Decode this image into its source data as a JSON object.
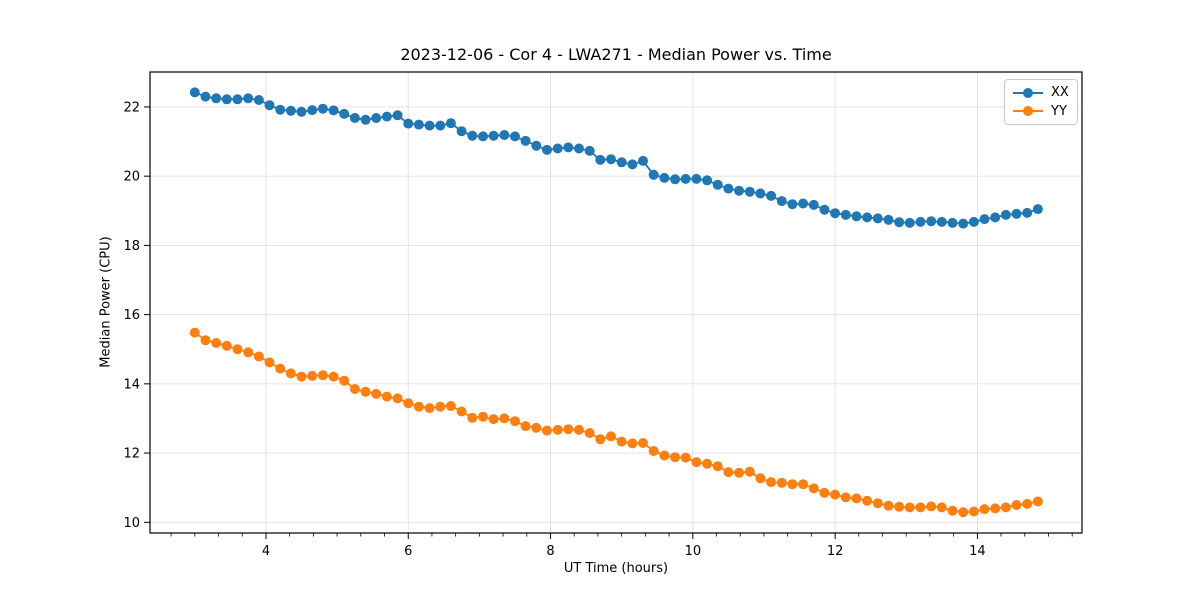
{
  "figure": {
    "background": "#ffffff"
  },
  "chart_data": {
    "type": "line",
    "title": "2023-12-06 - Cor 4 - LWA271 - Median Power vs. Time",
    "xlabel": "UT Time (hours)",
    "ylabel": "Median Power (CPU)",
    "xlim": [
      2.37,
      15.47
    ],
    "ylim": [
      9.69,
      23.01
    ],
    "x_major_ticks": [
      4,
      6,
      8,
      10,
      12,
      14
    ],
    "x_tick_labels": [
      "4",
      "6",
      "8",
      "10",
      "12",
      "14"
    ],
    "x_minor_tick_step": 0.3333,
    "y_major_ticks": [
      10,
      12,
      14,
      16,
      18,
      20,
      22
    ],
    "y_tick_labels": [
      "10",
      "12",
      "14",
      "16",
      "18",
      "20",
      "22"
    ],
    "grid": true,
    "grid_color": "#e0e0e0",
    "legend_position": "upper right",
    "marker": "circle",
    "x": [
      3.0,
      3.15,
      3.3,
      3.45,
      3.6,
      3.75,
      3.9,
      4.05,
      4.2,
      4.35,
      4.5,
      4.65,
      4.8,
      4.95,
      5.1,
      5.25,
      5.4,
      5.55,
      5.7,
      5.85,
      6.0,
      6.15,
      6.3,
      6.45,
      6.6,
      6.75,
      6.9,
      7.05,
      7.2,
      7.35,
      7.5,
      7.65,
      7.8,
      7.95,
      8.1,
      8.25,
      8.4,
      8.55,
      8.7,
      8.85,
      9.0,
      9.15,
      9.3,
      9.45,
      9.6,
      9.75,
      9.9,
      10.05,
      10.2,
      10.35,
      10.5,
      10.65,
      10.8,
      10.95,
      11.1,
      11.25,
      11.4,
      11.55,
      11.7,
      11.85,
      12.0,
      12.15,
      12.3,
      12.45,
      12.6,
      12.75,
      12.9,
      13.05,
      13.2,
      13.35,
      13.5,
      13.65,
      13.8,
      13.95,
      14.1,
      14.25,
      14.4,
      14.55,
      14.7,
      14.85
    ],
    "series": [
      {
        "name": "XX",
        "color": "#1f77b4",
        "values": [
          22.42,
          22.3,
          22.25,
          22.22,
          22.22,
          22.25,
          22.2,
          22.05,
          21.92,
          21.89,
          21.86,
          21.91,
          21.95,
          21.9,
          21.8,
          21.68,
          21.63,
          21.68,
          21.72,
          21.76,
          21.52,
          21.49,
          21.46,
          21.46,
          21.53,
          21.3,
          21.17,
          21.15,
          21.17,
          21.19,
          21.15,
          21.02,
          20.88,
          20.76,
          20.8,
          20.83,
          20.8,
          20.73,
          20.47,
          20.49,
          20.4,
          20.34,
          20.44,
          20.04,
          19.95,
          19.91,
          19.92,
          19.92,
          19.88,
          19.75,
          19.64,
          19.58,
          19.55,
          19.5,
          19.43,
          19.28,
          19.19,
          19.21,
          19.17,
          19.03,
          18.93,
          18.88,
          18.84,
          18.81,
          18.78,
          18.74,
          18.67,
          18.65,
          18.68,
          18.7,
          18.68,
          18.65,
          18.63,
          18.68,
          18.76,
          18.81,
          18.88,
          18.91,
          18.94,
          19.05
        ]
      },
      {
        "name": "YY",
        "color": "#ff7f0e",
        "values": [
          15.48,
          15.26,
          15.18,
          15.1,
          15.0,
          14.91,
          14.79,
          14.62,
          14.44,
          14.3,
          14.21,
          14.23,
          14.25,
          14.21,
          14.09,
          13.85,
          13.77,
          13.71,
          13.63,
          13.58,
          13.44,
          13.34,
          13.3,
          13.34,
          13.36,
          13.2,
          13.02,
          13.05,
          12.98,
          13.0,
          12.92,
          12.78,
          12.73,
          12.65,
          12.67,
          12.69,
          12.67,
          12.58,
          12.4,
          12.48,
          12.33,
          12.28,
          12.29,
          12.06,
          11.93,
          11.88,
          11.87,
          11.74,
          11.69,
          11.62,
          11.45,
          11.43,
          11.46,
          11.27,
          11.16,
          11.14,
          11.1,
          11.1,
          10.98,
          10.85,
          10.8,
          10.72,
          10.69,
          10.62,
          10.55,
          10.48,
          10.45,
          10.43,
          10.43,
          10.46,
          10.43,
          10.33,
          10.29,
          10.31,
          10.38,
          10.4,
          10.43,
          10.5,
          10.53,
          10.6
        ]
      }
    ]
  }
}
